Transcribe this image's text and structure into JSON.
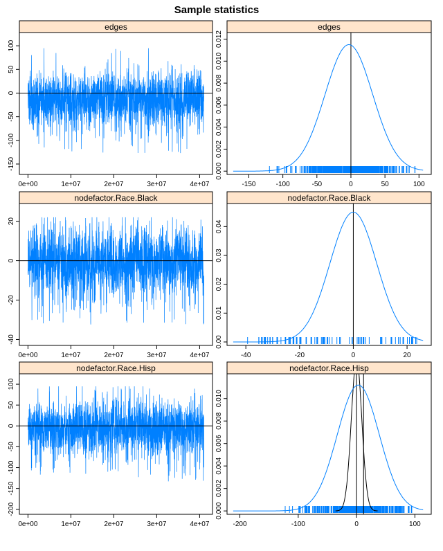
{
  "title": "Sample statistics",
  "colors": {
    "strip": "#FFE5CC",
    "series": "#0080FF",
    "frame": "#000000",
    "refline": "#000000"
  },
  "chart_data": [
    {
      "type": "line",
      "panel": "trace",
      "strip_label": "edges",
      "xlim": [
        -2000000.0,
        43000000.0
      ],
      "ylim": [
        -172,
        128
      ],
      "x_ticks": [
        0,
        10000000.0,
        20000000.0,
        30000000.0,
        40000000.0
      ],
      "x_tick_labels": [
        "0e+00",
        "1e+07",
        "2e+07",
        "3e+07",
        "4e+07"
      ],
      "y_ticks": [
        -150,
        -100,
        -50,
        0,
        50,
        100
      ],
      "y_tick_labels": [
        "-150",
        "-100",
        "-50",
        "0",
        "50",
        "100"
      ],
      "x_end": 41000000.0,
      "n_points": 2200,
      "center": -15,
      "spread": 28,
      "min": -150,
      "max": 95,
      "ref_y": 0
    },
    {
      "type": "area",
      "panel": "density",
      "strip_label": "edges",
      "xlim": [
        -182,
        118
      ],
      "ylim": [
        -0.0003,
        0.0126
      ],
      "x_ticks": [
        -150,
        -100,
        -50,
        0,
        50,
        100
      ],
      "x_tick_labels": [
        "-150",
        "-100",
        "-50",
        "0",
        "50",
        "100"
      ],
      "y_ticks": [
        0,
        0.002,
        0.004,
        0.006,
        0.008,
        0.01,
        0.012
      ],
      "y_tick_labels": [
        "0.000",
        "0.002",
        "0.004",
        "0.006",
        "0.008",
        "0.010",
        "0.012"
      ],
      "density": {
        "mean": -3,
        "sd": 35,
        "peak": 0.0115
      },
      "rug_range": [
        -165,
        95
      ],
      "rug_dense": true,
      "ref_x": [
        0
      ]
    },
    {
      "type": "line",
      "panel": "trace",
      "strip_label": "nodefactor.Race.Black",
      "xlim": [
        -2000000.0,
        43000000.0
      ],
      "ylim": [
        -43,
        29
      ],
      "x_ticks": [
        0,
        10000000.0,
        20000000.0,
        30000000.0,
        40000000.0
      ],
      "x_tick_labels": [
        "0e+00",
        "1e+07",
        "2e+07",
        "3e+07",
        "4e+07"
      ],
      "y_ticks": [
        -40,
        -20,
        0,
        20
      ],
      "y_tick_labels": [
        "-40",
        "-20",
        "0",
        "20"
      ],
      "x_end": 41000000.0,
      "n_points": 2200,
      "center": -1,
      "spread": 8,
      "min": -40,
      "max": 22,
      "ref_y": 0
    },
    {
      "type": "area",
      "panel": "density",
      "strip_label": "nodefactor.Race.Black",
      "xlim": [
        -47,
        29
      ],
      "ylim": [
        -0.0012,
        0.048
      ],
      "x_ticks": [
        -40,
        -20,
        0,
        20
      ],
      "x_tick_labels": [
        "-40",
        "-20",
        "0",
        "20"
      ],
      "y_ticks": [
        0,
        0.01,
        0.02,
        0.03,
        0.04
      ],
      "y_tick_labels": [
        "0.00",
        "0.01",
        "0.02",
        "0.03",
        "0.04"
      ],
      "density": {
        "mean": 0,
        "sd": 8.7,
        "peak": 0.045
      },
      "rug_range": [
        -40,
        25
      ],
      "rug_dense": false,
      "ref_x": [
        0
      ]
    },
    {
      "type": "line",
      "panel": "trace",
      "strip_label": "nodefactor.Race.Hisp",
      "xlim": [
        -2000000.0,
        43000000.0
      ],
      "ylim": [
        -212,
        125
      ],
      "x_ticks": [
        0,
        10000000.0,
        20000000.0,
        30000000.0,
        40000000.0
      ],
      "x_tick_labels": [
        "0e+00",
        "1e+07",
        "2e+07",
        "3e+07",
        "4e+07"
      ],
      "y_ticks": [
        -200,
        -150,
        -100,
        -50,
        0,
        50,
        100
      ],
      "y_tick_labels": [
        "-200",
        "-150",
        "-100",
        "-50",
        "0",
        "50",
        "100"
      ],
      "x_end": 41000000.0,
      "n_points": 2200,
      "center": -5,
      "spread": 32,
      "min": -185,
      "max": 95,
      "ref_y": 0
    },
    {
      "type": "area",
      "panel": "density",
      "strip_label": "nodefactor.Race.Hisp",
      "xlim": [
        -222,
        128
      ],
      "ylim": [
        -0.0003,
        0.0122
      ],
      "x_ticks": [
        -200,
        -100,
        0,
        100
      ],
      "x_tick_labels": [
        "-200",
        "-100",
        "0",
        "100"
      ],
      "y_ticks": [
        0,
        0.002,
        0.004,
        0.006,
        0.008,
        0.01
      ],
      "y_tick_labels": [
        "0.000",
        "0.002",
        "0.004",
        "0.006",
        "0.008",
        "0.010"
      ],
      "density": {
        "mean": 3,
        "sd": 36,
        "peak": 0.0112
      },
      "target_density": {
        "mean": 0,
        "sd": 9,
        "peak": 0.0135
      },
      "rug_range": [
        -190,
        95
      ],
      "rug_dense": true,
      "ref_x": [
        0,
        12
      ]
    }
  ]
}
